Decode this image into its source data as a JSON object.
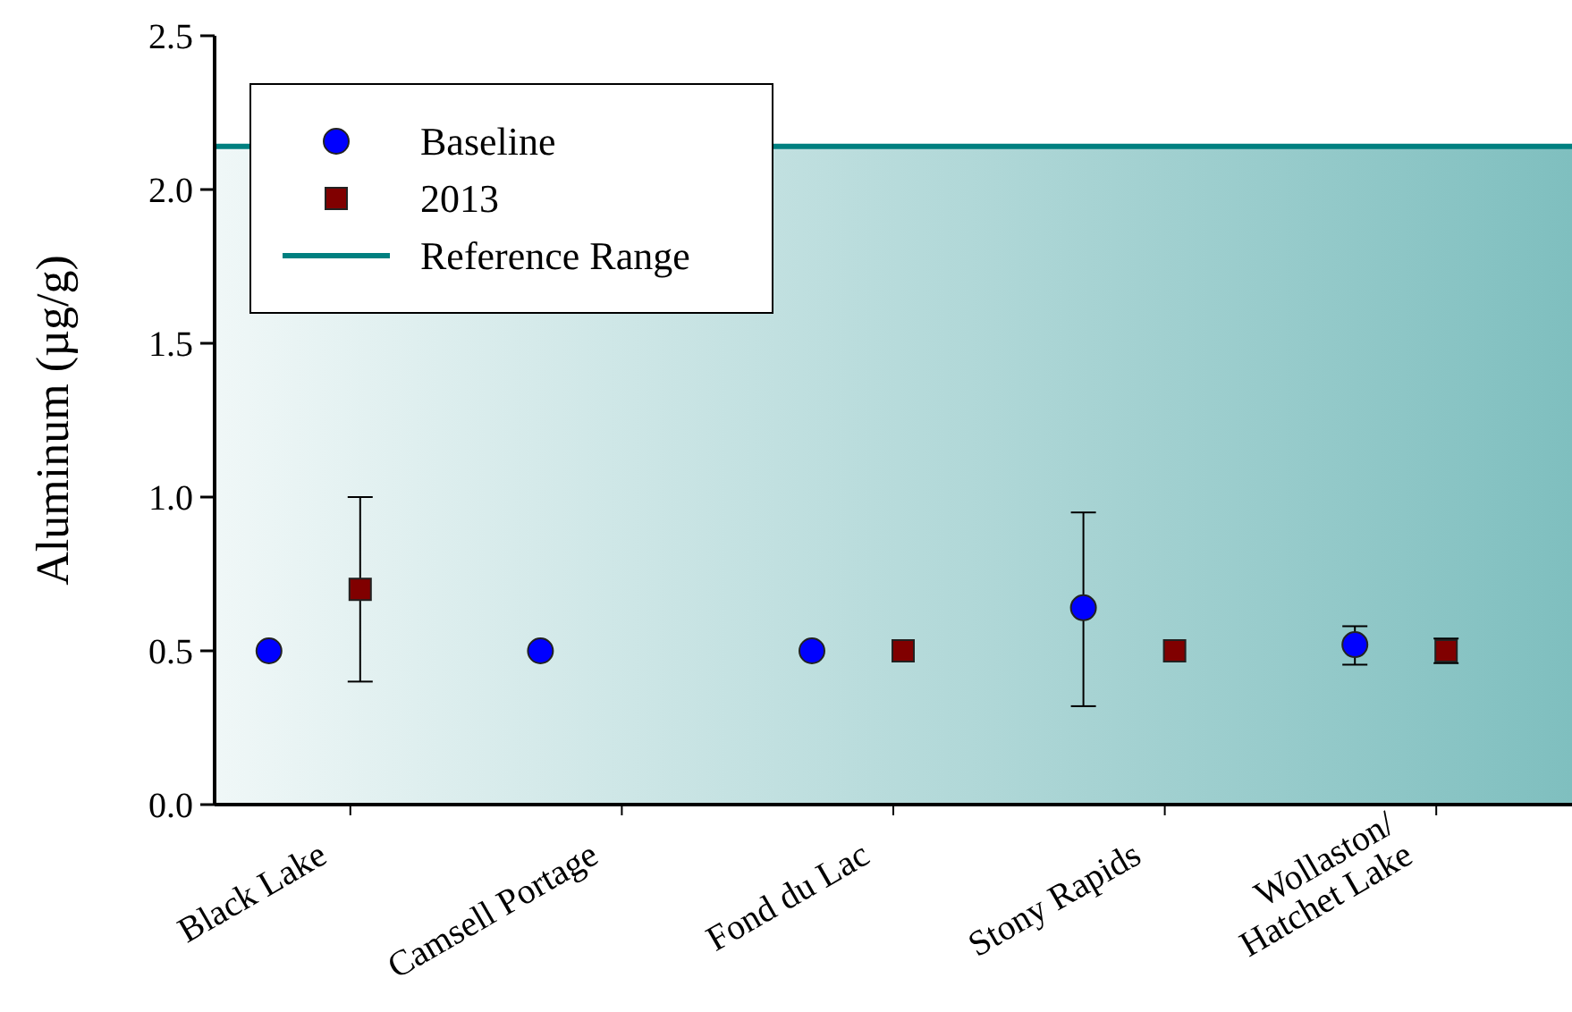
{
  "chart_data": {
    "type": "scatter",
    "ylabel": "Aluminum (µg/g)",
    "categories": [
      "Black Lake",
      "Camsell Portage",
      "Fond du Lac",
      "Stony Rapids",
      "Wollaston/\nHatchet Lake"
    ],
    "series": [
      {
        "name": "Baseline",
        "color": "#0000ff",
        "marker": "circle",
        "values": [
          0.5,
          0.5,
          0.5,
          0.64,
          0.52
        ],
        "errors": [
          null,
          null,
          null,
          [
            0.32,
            0.95
          ],
          [
            0.455,
            0.58
          ]
        ]
      },
      {
        "name": "2013",
        "color": "#800000",
        "marker": "square",
        "values": [
          0.7,
          null,
          0.5,
          0.5,
          0.5
        ],
        "errors": [
          [
            0.4,
            1.0
          ],
          null,
          null,
          null,
          [
            0.46,
            0.54
          ]
        ]
      }
    ],
    "ylim": [
      0,
      2.5
    ],
    "yticks": [
      {
        "value": 0,
        "label": "0.0"
      },
      {
        "value": 0.5,
        "label": "0.5"
      },
      {
        "value": 1,
        "label": "1.0"
      },
      {
        "value": 1.5,
        "label": "1.5"
      },
      {
        "value": 2,
        "label": "2.0"
      },
      {
        "value": 2.5,
        "label": "2.5"
      }
    ],
    "ref_lines": [
      {
        "axis": "y",
        "value": 2.14,
        "label": "Reference Range",
        "color": "#008080"
      }
    ],
    "bands": [
      {
        "axis": "y",
        "from": 0,
        "to": 2.14,
        "color": "#7fbfbf"
      }
    ],
    "grid": false,
    "legend": "top left"
  }
}
